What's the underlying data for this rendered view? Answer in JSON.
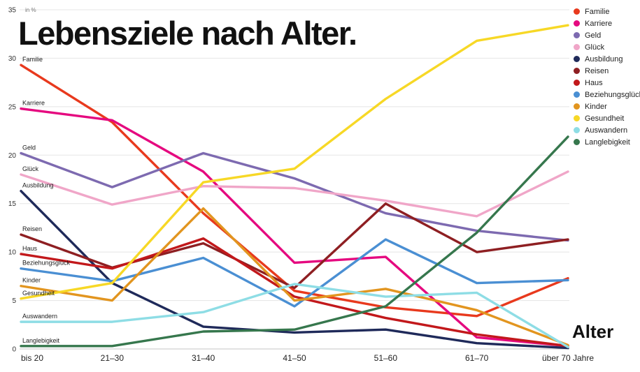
{
  "title": "Lebensziele nach Alter.",
  "y_axis_unit": "in %",
  "x_axis_label": "Alter",
  "chart_data": {
    "type": "line",
    "title": "Lebensziele nach Alter.",
    "xlabel": "Alter",
    "ylabel": "in %",
    "ylim": [
      0,
      35
    ],
    "yticks": [
      0,
      5,
      10,
      15,
      20,
      25,
      30,
      35
    ],
    "grid": true,
    "legend_position": "top-right",
    "categories": [
      "bis 20",
      "21–30",
      "31–40",
      "41–50",
      "51–60",
      "61–70",
      "über 70 Jahre"
    ],
    "series": [
      {
        "name": "Familie",
        "color": "#e8391d",
        "values": [
          29.3,
          23.4,
          14.0,
          6.0,
          4.3,
          3.4,
          7.3
        ]
      },
      {
        "name": "Karriere",
        "color": "#e5097f",
        "values": [
          24.8,
          23.6,
          18.3,
          8.9,
          9.5,
          1.2,
          0.3
        ]
      },
      {
        "name": "Geld",
        "color": "#7d6ab0",
        "values": [
          20.2,
          16.7,
          20.2,
          17.6,
          14.0,
          12.2,
          11.2
        ]
      },
      {
        "name": "Glück",
        "color": "#f0a6c8",
        "values": [
          18.0,
          14.9,
          16.8,
          16.6,
          15.3,
          13.7,
          18.3
        ]
      },
      {
        "name": "Ausbildung",
        "color": "#1f2a5a",
        "values": [
          16.3,
          6.8,
          2.3,
          1.7,
          2.0,
          0.6,
          0.1
        ]
      },
      {
        "name": "Reisen",
        "color": "#8e1f22",
        "values": [
          11.8,
          8.4,
          10.9,
          6.3,
          15.0,
          10.0,
          11.3
        ]
      },
      {
        "name": "Haus",
        "color": "#c2181b",
        "values": [
          9.8,
          8.3,
          11.4,
          5.4,
          3.2,
          1.5,
          0.3
        ]
      },
      {
        "name": "Beziehungsglück",
        "color": "#4a8fd3",
        "values": [
          8.3,
          7.0,
          9.4,
          4.4,
          11.3,
          6.8,
          7.1
        ]
      },
      {
        "name": "Kinder",
        "color": "#e2951f",
        "values": [
          6.5,
          5.0,
          14.5,
          5.0,
          6.2,
          4.0,
          0.4
        ]
      },
      {
        "name": "Gesundheit",
        "color": "#f7d826",
        "values": [
          5.2,
          6.8,
          17.2,
          18.6,
          25.8,
          31.8,
          33.4
        ]
      },
      {
        "name": "Auswandern",
        "color": "#8edde5",
        "values": [
          2.8,
          2.8,
          3.8,
          6.7,
          5.4,
          5.8,
          0.2
        ]
      },
      {
        "name": "Langlebigkeit",
        "color": "#36774d",
        "values": [
          0.3,
          0.3,
          1.8,
          2.0,
          4.4,
          12.0,
          21.9
        ]
      }
    ]
  }
}
